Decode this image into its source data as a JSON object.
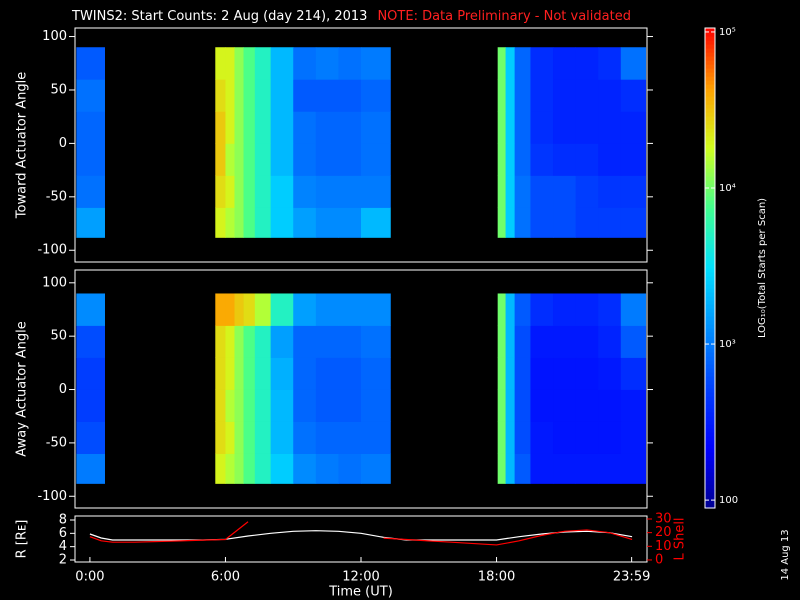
{
  "title": "TWINS2: Start Counts:  2 Aug (day 214), 2013",
  "note": "NOTE: Data Preliminary - Not validated",
  "date_stamp": "14 Aug 13",
  "colorbar": {
    "label": "LOG₁₀(Total Starts per Scan)",
    "lim": [
      89,
      106000
    ],
    "log": true,
    "ticks": [
      100,
      {
        "value": 1000,
        "label": "10³"
      },
      {
        "value": 10000,
        "label": "10⁴"
      },
      {
        "value": 100000,
        "label": "10⁵"
      }
    ],
    "colors": [
      "#000090",
      "#0000ff",
      "#0040ff",
      "#0090ff",
      "#00e0ff",
      "#40ff90",
      "#d0ff20",
      "#ffa000",
      "#ff0000"
    ]
  },
  "chart_data": [
    {
      "type": "heatmap",
      "ylabel": "Toward Actuator Angle",
      "xlim": [
        -0.66,
        24.66
      ],
      "ylim": [
        -111,
        108
      ],
      "yticks": [
        -100,
        -50,
        0,
        50,
        100
      ],
      "x": [
        -0.6,
        0.65,
        5.55,
        6.0,
        6.4,
        6.8,
        7.3,
        8,
        9,
        10,
        11,
        12,
        13.3,
        18.05,
        18.4,
        18.8,
        19.5,
        20.5,
        21.5,
        22.5,
        23.5,
        24.6
      ],
      "y": [
        -88,
        -60,
        -30,
        0,
        30,
        60,
        90
      ],
      "values": [
        [
          1500,
          null,
          20000,
          15000,
          12000,
          8000,
          5000,
          2500,
          1500,
          1200,
          1200,
          2000,
          null,
          10000,
          2500,
          900,
          600,
          600,
          500,
          500,
          500
        ],
        [
          900,
          null,
          25000,
          20000,
          12000,
          8000,
          5000,
          2500,
          1100,
          1000,
          1000,
          1000,
          null,
          10000,
          2500,
          900,
          600,
          600,
          500,
          450,
          450
        ],
        [
          800,
          null,
          30000,
          15000,
          12000,
          8000,
          5000,
          2000,
          900,
          800,
          800,
          900,
          null,
          10000,
          2500,
          800,
          450,
          400,
          400,
          350,
          350
        ],
        [
          800,
          null,
          30000,
          20000,
          12000,
          8000,
          5000,
          2000,
          900,
          800,
          800,
          900,
          null,
          10000,
          2500,
          800,
          400,
          350,
          350,
          350,
          350
        ],
        [
          900,
          null,
          25000,
          20000,
          12000,
          8000,
          5000,
          2000,
          700,
          700,
          700,
          800,
          null,
          10000,
          2500,
          800,
          400,
          350,
          350,
          350,
          400
        ],
        [
          700,
          null,
          20000,
          20000,
          12000,
          8000,
          5000,
          2000,
          900,
          1000,
          900,
          1000,
          null,
          10000,
          2500,
          800,
          400,
          350,
          350,
          400,
          900
        ]
      ]
    },
    {
      "type": "heatmap",
      "ylabel": "Away Actuator Angle",
      "xlim": [
        -0.66,
        24.66
      ],
      "ylim": [
        -111,
        112
      ],
      "yticks": [
        -100,
        -50,
        0,
        50,
        100
      ],
      "x": [
        -0.6,
        0.65,
        5.55,
        6.0,
        6.4,
        6.8,
        7.3,
        8,
        9,
        10,
        11,
        12,
        13.3,
        18.05,
        18.4,
        18.8,
        19.5,
        20.5,
        21.5,
        22.5,
        23.5,
        24.6
      ],
      "y": [
        -88,
        -60,
        -30,
        0,
        30,
        60,
        90
      ],
      "values": [
        [
          1000,
          null,
          20000,
          15000,
          12000,
          8000,
          5000,
          2500,
          1200,
          1000,
          900,
          1000,
          null,
          10000,
          2000,
          700,
          300,
          300,
          300,
          300,
          300
        ],
        [
          600,
          null,
          25000,
          20000,
          12000,
          8000,
          5000,
          2000,
          900,
          800,
          800,
          800,
          null,
          10000,
          2000,
          600,
          300,
          280,
          280,
          280,
          300
        ],
        [
          500,
          null,
          25000,
          15000,
          12000,
          8000,
          5000,
          2000,
          800,
          700,
          700,
          800,
          null,
          10000,
          2000,
          600,
          280,
          280,
          280,
          280,
          300
        ],
        [
          500,
          null,
          25000,
          20000,
          12000,
          8000,
          5000,
          1800,
          800,
          700,
          700,
          800,
          null,
          10000,
          2000,
          600,
          280,
          280,
          280,
          300,
          400
        ],
        [
          600,
          null,
          25000,
          20000,
          12000,
          8000,
          5000,
          1500,
          800,
          800,
          800,
          900,
          null,
          10000,
          2000,
          600,
          300,
          300,
          300,
          350,
          700
        ],
        [
          1200,
          null,
          40000,
          40000,
          30000,
          25000,
          15000,
          5000,
          1500,
          1200,
          1200,
          1200,
          null,
          10000,
          2000,
          700,
          400,
          350,
          350,
          400,
          1000
        ]
      ]
    },
    {
      "type": "line",
      "xlabel": "Time (UT)",
      "xlim": [
        -0.66,
        24.66
      ],
      "xticks": [
        {
          "value": 0,
          "label": "0:00"
        },
        {
          "value": 6,
          "label": "6:00"
        },
        {
          "value": 12,
          "label": "12:00"
        },
        {
          "value": 18,
          "label": "18:00"
        },
        {
          "value": 23.98,
          "label": "23:59"
        }
      ],
      "ylim": [
        1.7,
        8.6
      ],
      "yticks": [
        2,
        4,
        6,
        8
      ],
      "y2lim": [
        -1.5,
        32.2
      ],
      "y2ticks": [
        0,
        10,
        20,
        30
      ],
      "x": [
        0,
        0.5,
        1,
        2,
        3,
        4,
        5,
        6,
        7,
        8,
        9,
        10,
        11,
        12,
        13,
        14,
        15,
        16,
        17,
        18,
        19,
        20,
        21,
        22,
        23,
        24
      ],
      "series": [
        {
          "name": "R [Rᴇ]",
          "color": "#ffffff",
          "values": [
            5.9,
            5.3,
            5.0,
            5.0,
            5.0,
            5.0,
            5.0,
            5.1,
            5.6,
            6.0,
            6.3,
            6.4,
            6.3,
            6.0,
            5.4,
            5.0,
            5.0,
            5.0,
            5.0,
            5.0,
            5.5,
            5.9,
            6.2,
            6.3,
            6.1,
            5.5
          ]
        },
        {
          "name": "L Shell",
          "color": "#ff0000",
          "axis": "y2",
          "values": [
            17,
            14,
            13,
            13,
            13.5,
            14,
            14.5,
            15,
            28,
            null,
            null,
            null,
            null,
            null,
            16,
            15,
            14,
            13,
            12,
            11,
            14,
            18,
            21,
            22,
            20,
            15
          ]
        }
      ]
    }
  ]
}
